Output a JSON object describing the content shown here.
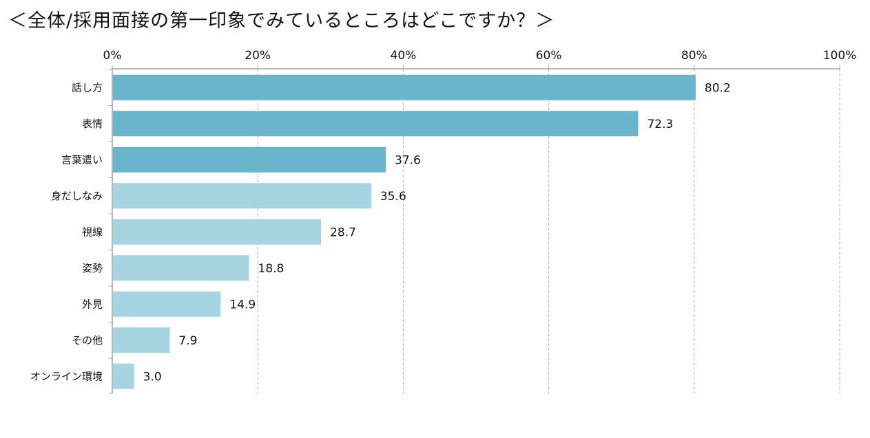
{
  "chart_data": {
    "type": "bar",
    "orientation": "horizontal",
    "title": "＜全体/採用面接の第一印象でみているところはどこですか？＞",
    "categories": [
      "話し方",
      "表情",
      "言葉遣い",
      "身だしなみ",
      "視線",
      "姿勢",
      "外見",
      "その他",
      "オンライン環境"
    ],
    "values": [
      80.2,
      72.3,
      37.6,
      35.6,
      28.7,
      18.8,
      14.9,
      7.9,
      3.0
    ],
    "value_labels": [
      "80.2",
      "72.3",
      "37.6",
      "35.6",
      "28.7",
      "18.8",
      "14.9",
      "7.9",
      "3.0"
    ],
    "xlim": [
      0,
      100
    ],
    "x_ticks": [
      "0%",
      "20%",
      "40%",
      "60%",
      "80%",
      "100%"
    ],
    "x_tick_values": [
      0,
      20,
      40,
      60,
      80,
      100
    ],
    "axis_position": "top",
    "grid": "vertical-dashed",
    "highlight_count": 3,
    "colors": {
      "highlight": "#6bb5cc",
      "normal": "#a6d4e1",
      "grid": "#b0b0b0",
      "axis": "#a0a0a0"
    }
  }
}
